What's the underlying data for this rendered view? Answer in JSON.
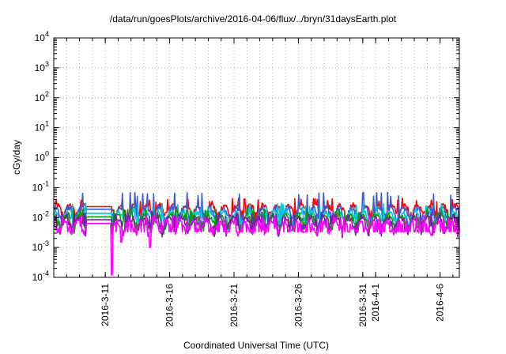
{
  "chart_data": {
    "type": "line",
    "title": "/data/run/goesPlots/archive/2016-04-06/flux/../bryn/31daysEarth.plot",
    "xlabel": "Coordinated Universal Time (UTC)",
    "ylabel": "cGy/day",
    "y_scale": "log",
    "ylim": [
      0.0001,
      10000
    ],
    "xlim": [
      "2016-03-07",
      "2016-04-07T12:00"
    ],
    "y_ticks": [
      {
        "base": "10",
        "exp": "-4"
      },
      {
        "base": "10",
        "exp": "-3"
      },
      {
        "base": "10",
        "exp": "-2"
      },
      {
        "base": "10",
        "exp": "-1"
      },
      {
        "base": "10",
        "exp": "0"
      },
      {
        "base": "10",
        "exp": "1"
      },
      {
        "base": "10",
        "exp": "2"
      },
      {
        "base": "10",
        "exp": "3"
      },
      {
        "base": "10",
        "exp": "4"
      }
    ],
    "x_ticks": [
      "2016-3-11",
      "2016-3-16",
      "2016-3-21",
      "2016-3-26",
      "2016-3-31",
      "2016-4-1",
      "2016-4-6"
    ],
    "x_tick_dates": [
      "2016-03-11",
      "2016-03-16",
      "2016-03-21",
      "2016-03-26",
      "2016-03-31",
      "2016-04-01",
      "2016-04-06"
    ],
    "grid": true,
    "series": [
      {
        "color": "#ff0000",
        "level": 0.022,
        "peak": 0.045
      },
      {
        "color": "#3b5bdb",
        "level": 0.018,
        "peak": 0.07
      },
      {
        "color": "#00c8d8",
        "level": 0.013,
        "peak": 0.03
      },
      {
        "color": "#00a000",
        "level": 0.01,
        "peak": 0.02
      },
      {
        "color": "#7a1fa2",
        "level": 0.008,
        "peak": 0.015
      },
      {
        "color": "#ff00ff",
        "level": 0.006,
        "peak": 0.012
      }
    ],
    "features": {
      "flat_segment": {
        "start": "2016-03-09T12:00",
        "end": "2016-03-11T12:00"
      },
      "dips": [
        {
          "date": "2016-03-11T12:00",
          "value": 0.00012
        },
        {
          "date": "2016-03-12T06:00",
          "value": 0.0015
        },
        {
          "date": "2016-03-14T12:00",
          "value": 0.001
        }
      ]
    }
  }
}
